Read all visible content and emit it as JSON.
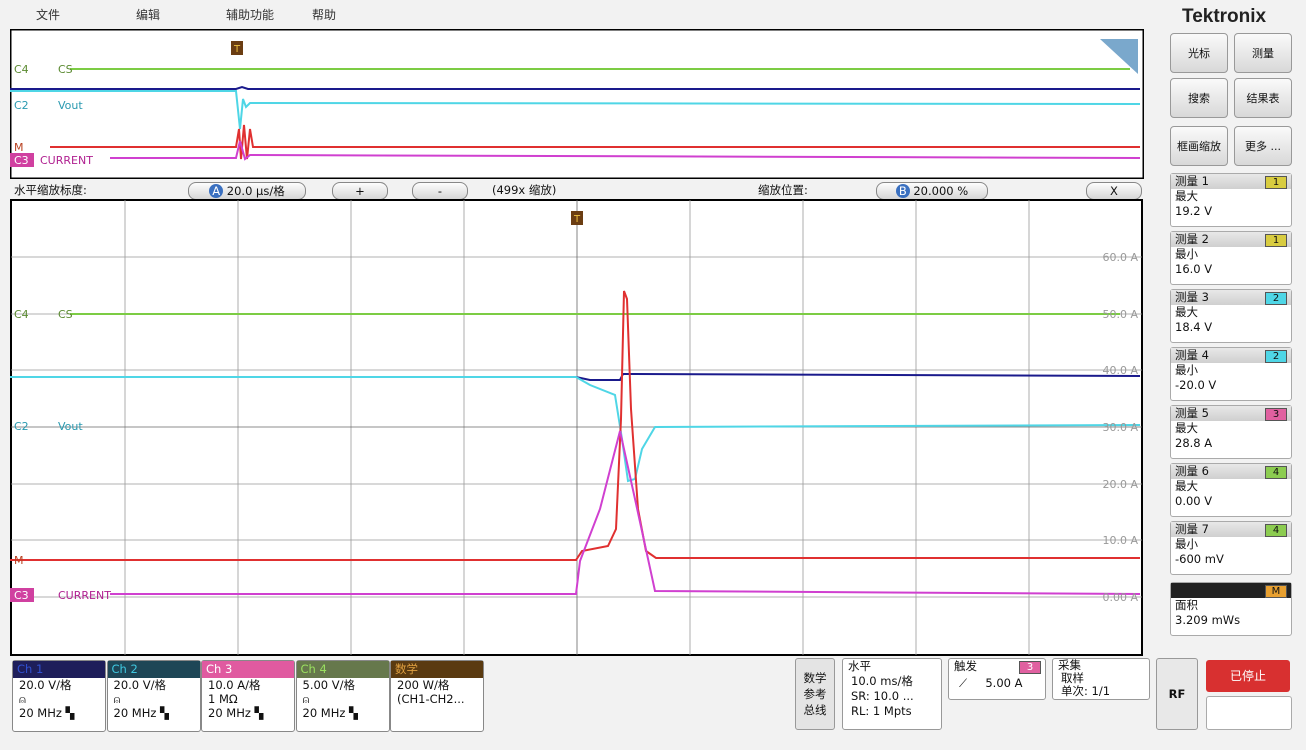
{
  "menu": [
    "文件",
    "编辑",
    "辅助功能",
    "帮助"
  ],
  "brand": "Tektronix",
  "buttons": [
    "光标",
    "测量",
    "搜索",
    "结果表",
    "框画缩放",
    "更多 ..."
  ],
  "overview": {
    "labels": [
      "C4",
      "CS",
      "C2",
      "Vout",
      "M",
      "C3",
      "CURRENT"
    ],
    "trigger": "T"
  },
  "zoom_bar": {
    "label": "水平缩放标度:",
    "badge_a": "A",
    "scale": "20.0 μs/格",
    "plus": "+",
    "minus": "-",
    "factor": "(499x 缩放)",
    "position_label": "缩放位置:",
    "badge_b": "B",
    "position": "20.000 %",
    "close": "X"
  },
  "main": {
    "trigger": "T",
    "right_labels": [
      "60.0 A",
      "50.0 A",
      "40.0 A",
      "30.0 A",
      "20.0 A",
      "10.0 A",
      "0.00 A"
    ],
    "labels": [
      "C4",
      "CS",
      "C2",
      "Vout",
      "M",
      "C3",
      "CURRENT"
    ]
  },
  "measurements": [
    {
      "title": "测量 1",
      "badge": "1",
      "kind": "最大",
      "value": "19.2 V"
    },
    {
      "title": "测量 2",
      "badge": "1",
      "kind": "最小",
      "value": "16.0 V"
    },
    {
      "title": "测量 3",
      "badge": "2",
      "kind": "最大",
      "value": "18.4 V"
    },
    {
      "title": "测量 4",
      "badge": "2",
      "kind": "最小",
      "value": "-20.0 V"
    },
    {
      "title": "测量 5",
      "badge": "3",
      "kind": "最大",
      "value": "28.8 A"
    },
    {
      "title": "测量 6",
      "badge": "4",
      "kind": "最大",
      "value": "0.00 V"
    },
    {
      "title": "测量 7",
      "badge": "4",
      "kind": "最小",
      "value": "-600 mV"
    }
  ],
  "math_measurement": {
    "badge": "M",
    "kind": "面积",
    "value": "3.209 mWs"
  },
  "channels": [
    {
      "name": "Ch 1",
      "lines": [
        "20.0 V/格",
        "⍝",
        "20 MHz ▚"
      ]
    },
    {
      "name": "Ch 2",
      "lines": [
        "20.0 V/格",
        "⍝",
        "20 MHz ▚"
      ]
    },
    {
      "name": "Ch 3",
      "lines": [
        "10.0 A/格",
        "1 MΩ",
        "20 MHz ▚"
      ]
    },
    {
      "name": "Ch 4",
      "lines": [
        "5.00 V/格",
        "⍝",
        "20 MHz ▚"
      ]
    },
    {
      "name": "数学",
      "lines": [
        "200 W/格",
        "(CH1-CH2..."
      ]
    }
  ],
  "bus_button": "数学 参考 总线",
  "horizontal": {
    "title": "水平",
    "lines": [
      "10.0 ms/格",
      "SR: 10.0 ...",
      "RL: 1 Mpts"
    ]
  },
  "trigger": {
    "title": "触发",
    "badge": "3",
    "slope": "⟋",
    "level": "5.00 A"
  },
  "acquisition": {
    "title": "采集",
    "lines": [
      "取样",
      "单次: 1/1"
    ]
  },
  "rf": "RF",
  "run_state": "已停止"
}
